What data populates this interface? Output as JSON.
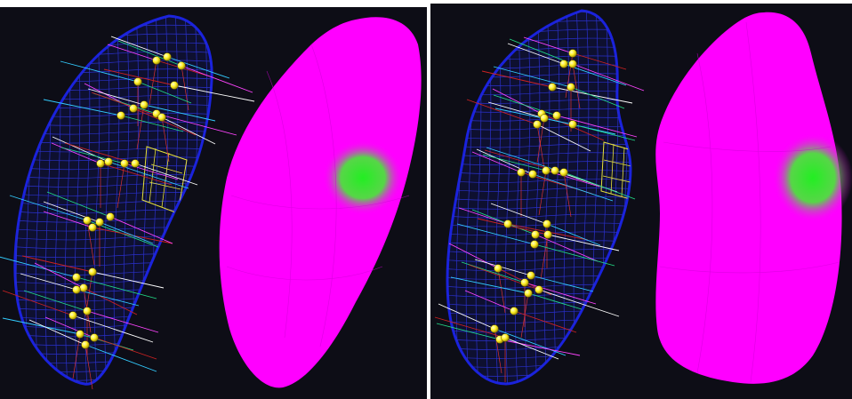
{
  "panels": [
    {
      "id": "left",
      "wireframe_color": "#1a22cc",
      "highlight_patch_color": "#e8e23a",
      "surface_color": "#ff00ff",
      "hotspot_color": "#22ee22",
      "marker_color": "#ffff33"
    },
    {
      "id": "right",
      "wireframe_color": "#1a22cc",
      "highlight_patch_color": "#e8e23a",
      "surface_color": "#ff00ff",
      "hotspot_color": "#22ee22",
      "marker_color": "#ffff33"
    }
  ],
  "background_color": "#0d0d16"
}
